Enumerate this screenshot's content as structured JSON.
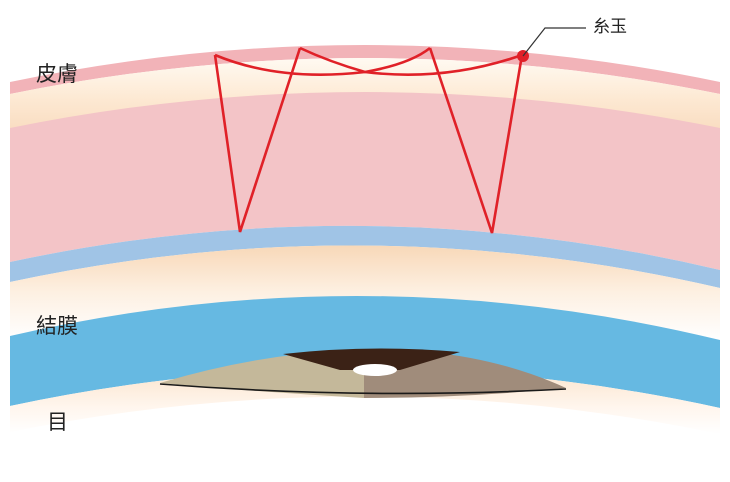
{
  "labels": {
    "skin": "皮膚",
    "conjunctiva": "結膜",
    "eye": "目",
    "knot": "糸玉"
  },
  "colors": {
    "skin_light": "#f6c3c6",
    "skin_edge": "#eea9ae",
    "fat_band": "#fbe4cc",
    "muscle_band": "#a4c6e6",
    "conjunctiva": "#66b9e2",
    "suture": "#e02128",
    "iris_left": "#c4b89a",
    "iris_right": "#a08c7b",
    "pupil_band": "#3b2216"
  }
}
